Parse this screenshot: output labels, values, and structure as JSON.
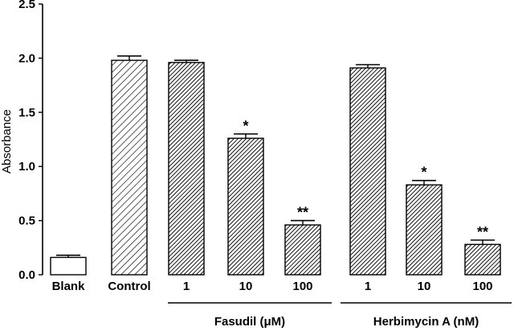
{
  "chart_data": {
    "type": "bar",
    "ylabel": "Absorbance",
    "ylim": [
      0,
      2.5
    ],
    "yticks": [
      "0.0",
      "0.5",
      "1.0",
      "1.5",
      "2.0",
      "2.5"
    ],
    "grid": false,
    "categories": [
      "Blank",
      "Control",
      "1",
      "10",
      "100",
      "1",
      "10",
      "100"
    ],
    "values": [
      0.16,
      1.98,
      1.96,
      1.26,
      0.46,
      1.91,
      0.83,
      0.28
    ],
    "errors": [
      0.02,
      0.04,
      0.02,
      0.04,
      0.04,
      0.03,
      0.04,
      0.04
    ],
    "fills": [
      "white",
      "light-hatch",
      "dark-hatch",
      "dark-hatch",
      "dark-hatch",
      "dark-hatch",
      "dark-hatch",
      "dark-hatch"
    ],
    "annotations": [
      "",
      "",
      "",
      "*",
      "**",
      "",
      "*",
      "**"
    ],
    "groups": [
      {
        "label": "Fasudil (μM)",
        "from": 2,
        "to": 4
      },
      {
        "label": "Herbimycin A (nM)",
        "from": 5,
        "to": 7
      }
    ]
  },
  "colors": {
    "bar_stroke": "#000000",
    "hatch": "#000000",
    "background": "#ffffff"
  }
}
